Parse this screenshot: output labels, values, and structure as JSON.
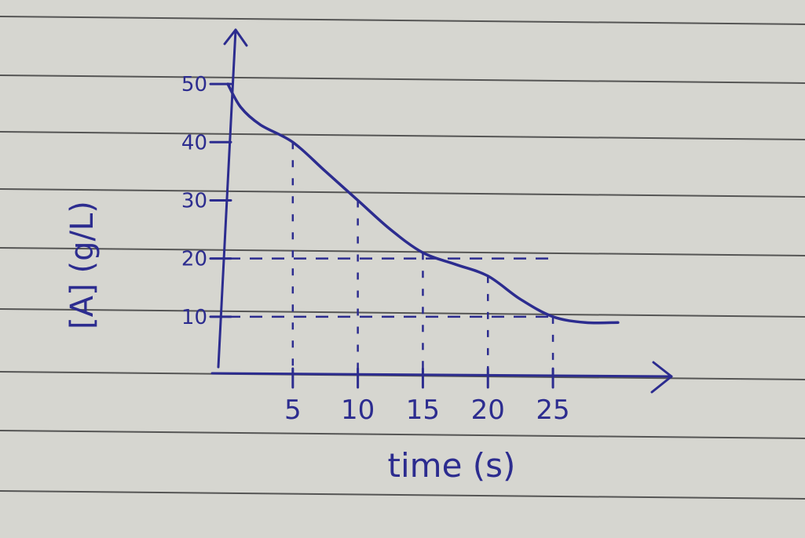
{
  "colors": {
    "paper": "#d6d6d0",
    "rule": "#2b2b2b",
    "ink": "#2c2c8f"
  },
  "chart_data": {
    "type": "line",
    "title": "",
    "xlabel": "time (s)",
    "ylabel": "[A] (g/L)",
    "x_ticks": [
      "5",
      "10",
      "15",
      "20",
      "25"
    ],
    "y_ticks": [
      "10",
      "20",
      "30",
      "40",
      "50"
    ],
    "xlim": [
      0,
      32
    ],
    "ylim": [
      0,
      55
    ],
    "grid": false,
    "series": [
      {
        "x": [
          0,
          1,
          2.5,
          5,
          7.5,
          10,
          12.5,
          15,
          17.5,
          20,
          22.5,
          25,
          27.5,
          30
        ],
        "y": [
          50,
          46,
          43,
          40,
          35,
          30,
          25,
          21,
          19,
          17,
          13,
          10,
          9,
          9
        ]
      }
    ],
    "dashed_guides": [
      {
        "x": 5,
        "y": 40
      },
      {
        "x": 10,
        "y": 30
      },
      {
        "x": 15,
        "y": 21
      },
      {
        "x": 20,
        "y": 17
      },
      {
        "x": 25,
        "y": 10
      }
    ]
  }
}
